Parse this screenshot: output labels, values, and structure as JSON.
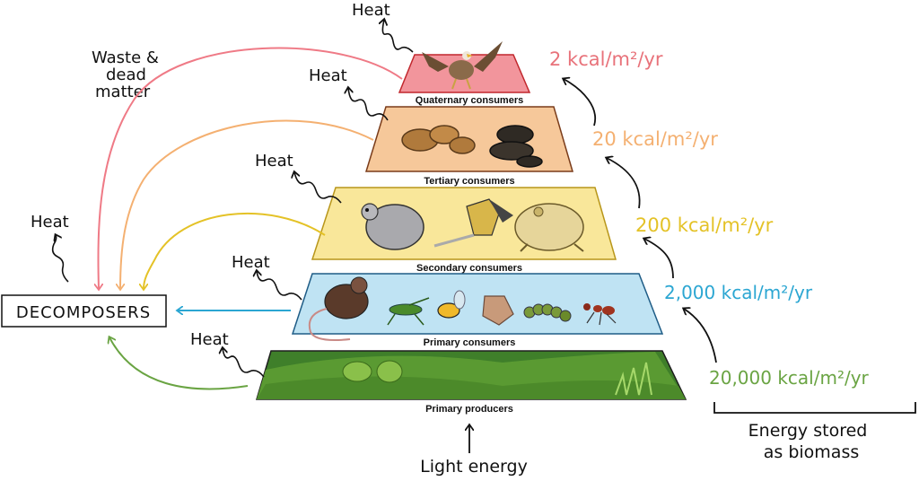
{
  "tiers": [
    {
      "label": "Quaternary consumers",
      "energy": "2 kcal/m²/yr",
      "color": "#f2959c",
      "stroke": "#c1272d",
      "energy_color": "#e8727a"
    },
    {
      "label": "Tertiary consumers",
      "energy": "20 kcal/m²/yr",
      "color": "#f6c89a",
      "stroke": "#a0522d",
      "energy_color": "#f4b071"
    },
    {
      "label": "Secondary consumers",
      "energy": "200 kcal/m²/yr",
      "color": "#f9e79a",
      "stroke": "#b8961a",
      "energy_color": "#e4c227"
    },
    {
      "label": "Primary consumers",
      "energy": "2,000 kcal/m²/yr",
      "color": "#bfe3f3",
      "stroke": "#1f5c86",
      "energy_color": "#2ba6d2"
    },
    {
      "label": "Primary producers",
      "energy": "20,000 kcal/m²/yr",
      "color": "#3f7f2a",
      "stroke": "#1e1e1e",
      "energy_color": "#6aa443"
    }
  ],
  "heat_label": "Heat",
  "waste_label_lines": [
    "Waste &",
    "dead",
    "matter"
  ],
  "decomposers_label": "DECOMPOSERS",
  "light_label": "Light energy",
  "biomass_label_lines": [
    "Energy stored",
    "as biomass"
  ]
}
